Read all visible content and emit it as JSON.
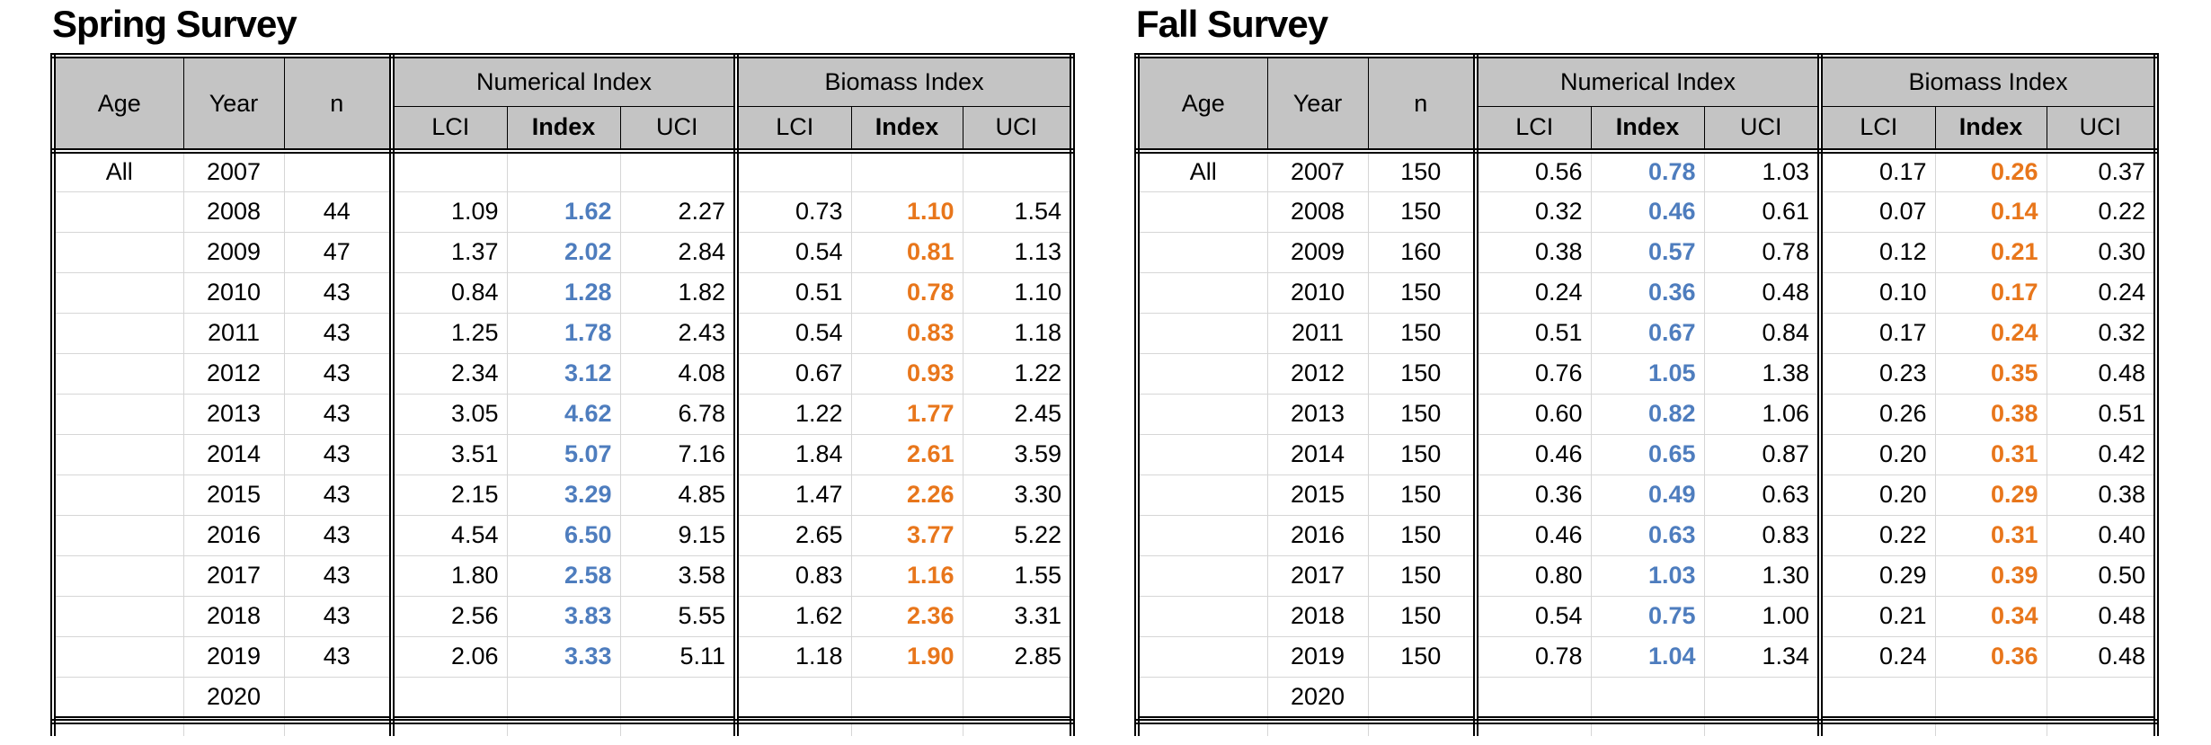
{
  "colors": {
    "header_bg": "#C4C4C4",
    "grid_line": "#D6D6D6",
    "border": "#000000",
    "index_numerical_text": "#4E7DBE",
    "index_biomass_text": "#E8761B"
  },
  "chart_data": [
    {
      "type": "table",
      "title": "Spring Survey",
      "column_groups": [
        "",
        "Numerical Index",
        "Biomass Index"
      ],
      "columns": [
        "Age",
        "Year",
        "n",
        "LCI",
        "Index",
        "UCI",
        "LCI",
        "Index",
        "UCI"
      ],
      "rows": [
        [
          "All",
          "2007",
          "",
          "",
          "",
          "",
          "",
          "",
          ""
        ],
        [
          "",
          "2008",
          "44",
          "1.09",
          "1.62",
          "2.27",
          "0.73",
          "1.10",
          "1.54"
        ],
        [
          "",
          "2009",
          "47",
          "1.37",
          "2.02",
          "2.84",
          "0.54",
          "0.81",
          "1.13"
        ],
        [
          "",
          "2010",
          "43",
          "0.84",
          "1.28",
          "1.82",
          "0.51",
          "0.78",
          "1.10"
        ],
        [
          "",
          "2011",
          "43",
          "1.25",
          "1.78",
          "2.43",
          "0.54",
          "0.83",
          "1.18"
        ],
        [
          "",
          "2012",
          "43",
          "2.34",
          "3.12",
          "4.08",
          "0.67",
          "0.93",
          "1.22"
        ],
        [
          "",
          "2013",
          "43",
          "3.05",
          "4.62",
          "6.78",
          "1.22",
          "1.77",
          "2.45"
        ],
        [
          "",
          "2014",
          "43",
          "3.51",
          "5.07",
          "7.16",
          "1.84",
          "2.61",
          "3.59"
        ],
        [
          "",
          "2015",
          "43",
          "2.15",
          "3.29",
          "4.85",
          "1.47",
          "2.26",
          "3.30"
        ],
        [
          "",
          "2016",
          "43",
          "4.54",
          "6.50",
          "9.15",
          "2.65",
          "3.77",
          "5.22"
        ],
        [
          "",
          "2017",
          "43",
          "1.80",
          "2.58",
          "3.58",
          "0.83",
          "1.16",
          "1.55"
        ],
        [
          "",
          "2018",
          "43",
          "2.56",
          "3.83",
          "5.55",
          "1.62",
          "2.36",
          "3.31"
        ],
        [
          "",
          "2019",
          "43",
          "2.06",
          "3.33",
          "5.11",
          "1.18",
          "1.90",
          "2.85"
        ],
        [
          "",
          "2020",
          "",
          "",
          "",
          "",
          "",
          "",
          ""
        ]
      ]
    },
    {
      "type": "table",
      "title": "Fall Survey",
      "column_groups": [
        "",
        "Numerical Index",
        "Biomass Index"
      ],
      "columns": [
        "Age",
        "Year",
        "n",
        "LCI",
        "Index",
        "UCI",
        "LCI",
        "Index",
        "UCI"
      ],
      "rows": [
        [
          "All",
          "2007",
          "150",
          "0.56",
          "0.78",
          "1.03",
          "0.17",
          "0.26",
          "0.37"
        ],
        [
          "",
          "2008",
          "150",
          "0.32",
          "0.46",
          "0.61",
          "0.07",
          "0.14",
          "0.22"
        ],
        [
          "",
          "2009",
          "160",
          "0.38",
          "0.57",
          "0.78",
          "0.12",
          "0.21",
          "0.30"
        ],
        [
          "",
          "2010",
          "150",
          "0.24",
          "0.36",
          "0.48",
          "0.10",
          "0.17",
          "0.24"
        ],
        [
          "",
          "2011",
          "150",
          "0.51",
          "0.67",
          "0.84",
          "0.17",
          "0.24",
          "0.32"
        ],
        [
          "",
          "2012",
          "150",
          "0.76",
          "1.05",
          "1.38",
          "0.23",
          "0.35",
          "0.48"
        ],
        [
          "",
          "2013",
          "150",
          "0.60",
          "0.82",
          "1.06",
          "0.26",
          "0.38",
          "0.51"
        ],
        [
          "",
          "2014",
          "150",
          "0.46",
          "0.65",
          "0.87",
          "0.20",
          "0.31",
          "0.42"
        ],
        [
          "",
          "2015",
          "150",
          "0.36",
          "0.49",
          "0.63",
          "0.20",
          "0.29",
          "0.38"
        ],
        [
          "",
          "2016",
          "150",
          "0.46",
          "0.63",
          "0.83",
          "0.22",
          "0.31",
          "0.40"
        ],
        [
          "",
          "2017",
          "150",
          "0.80",
          "1.03",
          "1.30",
          "0.29",
          "0.39",
          "0.50"
        ],
        [
          "",
          "2018",
          "150",
          "0.54",
          "0.75",
          "1.00",
          "0.21",
          "0.34",
          "0.48"
        ],
        [
          "",
          "2019",
          "150",
          "0.78",
          "1.04",
          "1.34",
          "0.24",
          "0.36",
          "0.48"
        ],
        [
          "",
          "2020",
          "",
          "",
          "",
          "",
          "",
          "",
          ""
        ]
      ]
    }
  ]
}
